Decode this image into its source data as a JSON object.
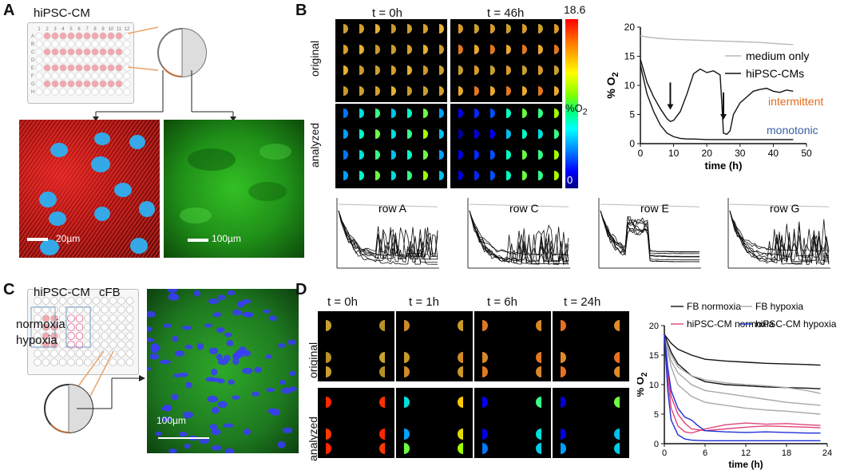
{
  "panel_labels": {
    "a": "A",
    "b": "B",
    "c": "C",
    "d": "D"
  },
  "panel_a": {
    "plate_label": "hiPSC-CM",
    "plate_cols": [
      "1",
      "2",
      "3",
      "4",
      "5",
      "6",
      "7",
      "8",
      "9",
      "10",
      "11",
      "12"
    ],
    "plate_rows": [
      "A",
      "B",
      "C",
      "D",
      "E",
      "F",
      "G",
      "H"
    ],
    "scale_left": "20µm",
    "scale_right": "100µm"
  },
  "panel_b": {
    "t0": "t = 0h",
    "t46": "t = 46h",
    "row_original": "original",
    "row_analyzed": "analyzed",
    "colorbar_max": "18.6",
    "colorbar_min": "0",
    "colorbar_unit": "%O",
    "colorbar_unit_sub": "2",
    "row_labels": [
      "row A",
      "row C",
      "row E",
      "row G"
    ]
  },
  "panel_c": {
    "label_cm": "hiPSC-CM",
    "label_cfb": "cFB",
    "label_normoxia": "normoxia",
    "label_hypoxia": "hypoxia",
    "scale": "100µm"
  },
  "panel_d": {
    "times": [
      "t = 0h",
      "t = 1h",
      "t = 6h",
      "t = 24h"
    ],
    "row_original": "original",
    "row_analyzed": "analyzed"
  },
  "colors": {
    "medium": "#b8b8b8",
    "cells": "#111111",
    "intermittent": "#e46b1c",
    "monotonic": "#3a5ea8",
    "fb_normoxia": "#111111",
    "fb_hypoxia": "#a8a8a8",
    "cm_normoxia": "#e0457b",
    "cm_hypoxia": "#1f2fd6"
  },
  "chart_data": [
    {
      "type": "line",
      "id": "panel-b-chart",
      "xlabel": "time (h)",
      "ylabel": "% O",
      "ylabel_sub": "2",
      "xlim": [
        0,
        50
      ],
      "ylim": [
        0,
        20
      ],
      "xticks": [
        0,
        10,
        20,
        30,
        40,
        50
      ],
      "yticks": [
        0,
        5,
        10,
        15,
        20
      ],
      "annotations": [
        {
          "text": "intermittent",
          "color": "#e46b1c"
        },
        {
          "text": "monotonic",
          "color": "#3a5ea8"
        }
      ],
      "arrows_at_x": [
        9,
        25
      ],
      "series": [
        {
          "name": "medium only",
          "color": "#b8b8b8",
          "x": [
            0,
            2,
            5,
            10,
            15,
            20,
            25,
            30,
            35,
            40,
            46
          ],
          "y": [
            18.5,
            18.3,
            18.1,
            17.9,
            17.8,
            17.7,
            17.6,
            17.5,
            17.4,
            17.2,
            17.0
          ]
        },
        {
          "name": "hiPSC-CMs",
          "color": "#111111",
          "x": [
            0,
            2,
            4,
            6,
            8,
            9,
            10,
            12,
            14,
            16,
            18,
            20,
            22,
            24,
            24.5,
            25,
            26,
            27,
            28,
            30,
            32,
            34,
            36,
            38,
            40,
            42,
            44,
            46
          ],
          "y": [
            14.5,
            10.5,
            8,
            6,
            4.3,
            3.8,
            4,
            5.5,
            8.5,
            12,
            12.8,
            12.2,
            12.5,
            11.8,
            7,
            1.8,
            1.6,
            2.2,
            5,
            7,
            8,
            9,
            9.3,
            9.5,
            9,
            8.8,
            9.2,
            9
          ]
        },
        {
          "name": "",
          "color": "#111111",
          "x": [
            0,
            2,
            4,
            6,
            8,
            10,
            12,
            14,
            16,
            20,
            25,
            30,
            35,
            40,
            46
          ],
          "y": [
            13.5,
            8.5,
            5.5,
            3.2,
            1.8,
            1.2,
            0.9,
            0.8,
            0.8,
            0.7,
            0.7,
            0.7,
            0.7,
            0.7,
            0.7
          ]
        }
      ]
    },
    {
      "type": "line",
      "id": "panel-d-chart",
      "xlabel": "time (h)",
      "ylabel": "% O",
      "ylabel_sub": "2",
      "xlim": [
        0,
        24
      ],
      "ylim": [
        0,
        20
      ],
      "xticks": [
        0,
        6,
        12,
        18,
        24
      ],
      "yticks": [
        0,
        5,
        10,
        15,
        20
      ],
      "series": [
        {
          "name": "FB normoxia",
          "color": "#111111",
          "x": [
            0,
            1,
            2,
            4,
            6,
            9,
            12,
            15,
            18,
            21,
            23
          ],
          "y": [
            18.5,
            17,
            16,
            15,
            14.3,
            14,
            13.8,
            13.6,
            13.5,
            13.4,
            13.3
          ]
        },
        {
          "name": "",
          "color": "#111111",
          "x": [
            0,
            1,
            2,
            4,
            6,
            9,
            12,
            15,
            18,
            21,
            23
          ],
          "y": [
            18.5,
            15.5,
            13.5,
            11.5,
            10.5,
            10,
            9.8,
            9.6,
            9.5,
            9.4,
            9.3
          ]
        },
        {
          "name": "FB hypoxia",
          "color": "#a8a8a8",
          "x": [
            0,
            1,
            2,
            4,
            6,
            9,
            12,
            15,
            18,
            21,
            23
          ],
          "y": [
            18,
            15,
            13,
            11.5,
            10.8,
            10.3,
            10,
            9.8,
            9.5,
            9,
            8.5
          ]
        },
        {
          "name": "",
          "color": "#a8a8a8",
          "x": [
            0,
            1,
            2,
            4,
            6,
            9,
            12,
            15,
            18,
            21,
            23
          ],
          "y": [
            18,
            14,
            12,
            10,
            9,
            8.5,
            8,
            7.5,
            7,
            6.7,
            6.5
          ]
        },
        {
          "name": "",
          "color": "#a8a8a8",
          "x": [
            0,
            1,
            2,
            4,
            6,
            9,
            12,
            15,
            18,
            21,
            23
          ],
          "y": [
            18,
            13,
            10,
            8,
            7,
            6.5,
            6,
            5.7,
            5.5,
            5.2,
            5
          ]
        },
        {
          "name": "hiPSC-CM normoxia",
          "color": "#e0457b",
          "x": [
            0,
            0.5,
            1,
            2,
            3,
            4,
            6,
            9,
            12,
            15,
            18,
            21,
            23
          ],
          "y": [
            18.5,
            12,
            8,
            5,
            3.5,
            2.5,
            2.2,
            2.5,
            2.8,
            3,
            2.9,
            2.8,
            2.7
          ]
        },
        {
          "name": "",
          "color": "#e0457b",
          "x": [
            0,
            0.5,
            1,
            2,
            3,
            4,
            6,
            9,
            12,
            15,
            18,
            21,
            23
          ],
          "y": [
            18.5,
            11,
            6,
            3,
            2,
            1.8,
            2.5,
            3.2,
            3.5,
            3.3,
            3.4,
            3.2,
            3.1
          ]
        },
        {
          "name": "hiPSC-CM hypoxia",
          "color": "#1f2fd6",
          "x": [
            0,
            0.5,
            1,
            2,
            3,
            4,
            5,
            6,
            9,
            12,
            15,
            18,
            21,
            23
          ],
          "y": [
            18.5,
            13,
            9,
            6,
            4.5,
            4,
            3,
            2.2,
            2,
            1.9,
            2,
            1.9,
            1.8,
            1.8
          ]
        },
        {
          "name": "",
          "color": "#1f2fd6",
          "x": [
            0,
            0.5,
            1,
            2,
            3,
            4,
            6,
            9,
            12,
            15,
            18,
            21,
            23
          ],
          "y": [
            18.5,
            9,
            4,
            1.5,
            0.8,
            0.6,
            0.5,
            0.5,
            0.5,
            0.5,
            0.5,
            0.5,
            0.5
          ]
        }
      ]
    }
  ]
}
